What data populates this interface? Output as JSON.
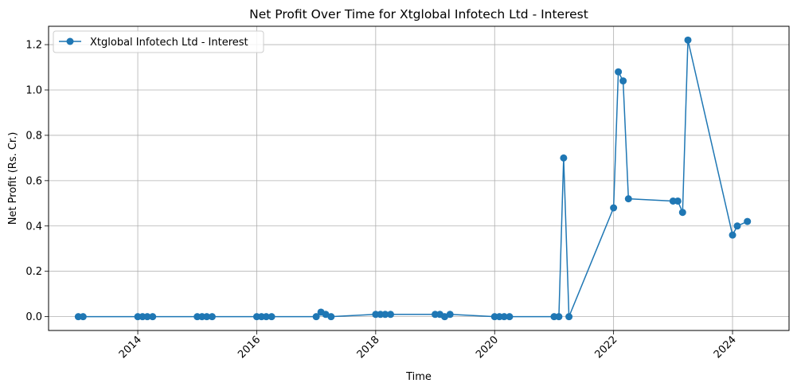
{
  "chart_data": {
    "type": "line",
    "title": "Net Profit Over Time for Xtglobal Infotech Ltd - Interest",
    "xlabel": "Time",
    "ylabel": "Net Profit (Rs. Cr.)",
    "xlim": [
      2012.5,
      2024.95
    ],
    "ylim": [
      -0.061,
      1.281
    ],
    "grid": true,
    "legend_position": "top-left",
    "x_ticks": [
      2014,
      2016,
      2018,
      2020,
      2022,
      2024
    ],
    "x_tick_labels": [
      "2014",
      "2016",
      "2018",
      "2020",
      "2022",
      "2024"
    ],
    "y_ticks": [
      0.0,
      0.2,
      0.4,
      0.6,
      0.8,
      1.0,
      1.2
    ],
    "y_tick_labels": [
      "0.0",
      "0.2",
      "0.4",
      "0.6",
      "0.8",
      "1.0",
      "1.2"
    ],
    "colors": {
      "series": "#1f77b4",
      "grid": "#b0b0b0"
    },
    "series": [
      {
        "name": "Xtglobal Infotech Ltd - Interest",
        "points": [
          [
            2013.0,
            0.0
          ],
          [
            2013.08,
            0.0
          ],
          [
            2014.0,
            0.0
          ],
          [
            2014.08,
            0.0
          ],
          [
            2014.16,
            0.0
          ],
          [
            2014.25,
            0.0
          ],
          [
            2015.0,
            0.0
          ],
          [
            2015.08,
            0.0
          ],
          [
            2015.16,
            0.0
          ],
          [
            2015.25,
            0.0
          ],
          [
            2016.0,
            0.0
          ],
          [
            2016.08,
            0.0
          ],
          [
            2016.16,
            0.0
          ],
          [
            2016.25,
            0.0
          ],
          [
            2017.0,
            0.0
          ],
          [
            2017.08,
            0.02
          ],
          [
            2017.16,
            0.01
          ],
          [
            2017.25,
            0.0
          ],
          [
            2018.0,
            0.01
          ],
          [
            2018.08,
            0.01
          ],
          [
            2018.16,
            0.01
          ],
          [
            2018.25,
            0.01
          ],
          [
            2019.0,
            0.01
          ],
          [
            2019.08,
            0.01
          ],
          [
            2019.16,
            0.0
          ],
          [
            2019.25,
            0.01
          ],
          [
            2020.0,
            0.0
          ],
          [
            2020.08,
            0.0
          ],
          [
            2020.16,
            0.0
          ],
          [
            2020.25,
            0.0
          ],
          [
            2021.0,
            0.0
          ],
          [
            2021.08,
            0.0
          ],
          [
            2021.16,
            0.7
          ],
          [
            2021.25,
            0.0
          ],
          [
            2022.0,
            0.48
          ],
          [
            2022.08,
            1.08
          ],
          [
            2022.16,
            1.04
          ],
          [
            2022.25,
            0.52
          ],
          [
            2023.0,
            0.51
          ],
          [
            2023.08,
            0.51
          ],
          [
            2023.16,
            0.46
          ],
          [
            2023.25,
            1.22
          ],
          [
            2024.0,
            0.36
          ],
          [
            2024.08,
            0.4
          ],
          [
            2024.25,
            0.42
          ]
        ]
      }
    ]
  }
}
